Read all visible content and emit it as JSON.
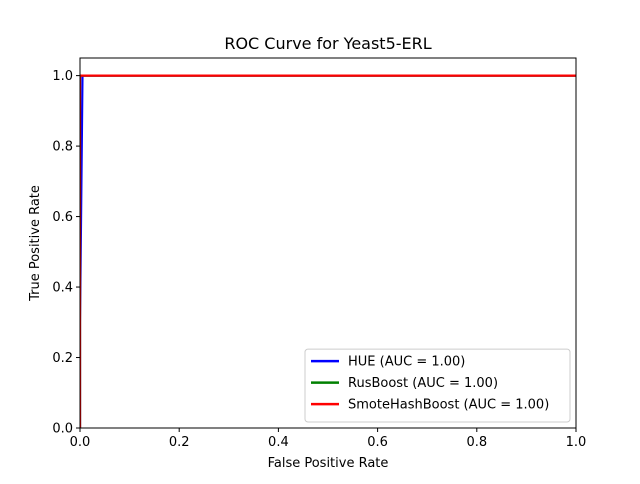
{
  "chart_data": {
    "type": "line",
    "title": "ROC Curve for Yeast5-ERL",
    "xlabel": "False Positive Rate",
    "ylabel": "True Positive Rate",
    "xlim": [
      0.0,
      1.0
    ],
    "ylim": [
      0.0,
      1.05
    ],
    "xticks": [
      0.0,
      0.2,
      0.4,
      0.6,
      0.8,
      1.0
    ],
    "yticks": [
      0.0,
      0.2,
      0.4,
      0.6,
      0.8,
      1.0
    ],
    "xtick_labels": [
      "0.0",
      "0.2",
      "0.4",
      "0.6",
      "0.8",
      "1.0"
    ],
    "ytick_labels": [
      "0.0",
      "0.2",
      "0.4",
      "0.6",
      "0.8",
      "1.0"
    ],
    "grid": false,
    "legend_position": "lower-right",
    "series": [
      {
        "name": "HUE (AUC = 1.00)",
        "color": "#0000ff",
        "x": [
          0.0,
          0.0,
          0.005,
          1.0
        ],
        "y": [
          0.0,
          0.3,
          1.0,
          1.0
        ]
      },
      {
        "name": "RusBoost (AUC = 1.00)",
        "color": "#008000",
        "x": [
          0.0,
          0.0,
          1.0
        ],
        "y": [
          0.0,
          1.0,
          1.0
        ]
      },
      {
        "name": "SmoteHashBoost (AUC = 1.00)",
        "color": "#ff0000",
        "x": [
          0.0,
          0.0,
          1.0
        ],
        "y": [
          0.0,
          1.0,
          1.0
        ]
      }
    ]
  }
}
